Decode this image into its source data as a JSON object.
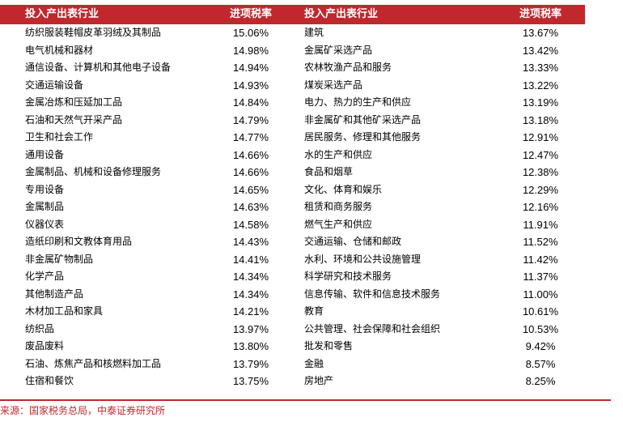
{
  "header": {
    "col1": "投入产出表行业",
    "col2": "进项税率",
    "col3": "投入产出表行业",
    "col4": "进项税率"
  },
  "rows": [
    {
      "a": "纺织服装鞋帽皮革羽绒及其制品",
      "ar": "15.06%",
      "b": "建筑",
      "br": "13.67%"
    },
    {
      "a": "电气机械和器材",
      "ar": "14.98%",
      "b": "金属矿采选产品",
      "br": "13.42%"
    },
    {
      "a": "通信设备、计算机和其他电子设备",
      "ar": "14.94%",
      "b": "农林牧渔产品和服务",
      "br": "13.33%"
    },
    {
      "a": "交通运输设备",
      "ar": "14.93%",
      "b": "煤炭采选产品",
      "br": "13.22%"
    },
    {
      "a": "金属冶炼和压延加工品",
      "ar": "14.84%",
      "b": "电力、热力的生产和供应",
      "br": "13.19%"
    },
    {
      "a": "石油和天然气开采产品",
      "ar": "14.79%",
      "b": "非金属矿和其他矿采选产品",
      "br": "13.18%"
    },
    {
      "a": "卫生和社会工作",
      "ar": "14.77%",
      "b": "居民服务、修理和其他服务",
      "br": "12.91%"
    },
    {
      "a": "通用设备",
      "ar": "14.66%",
      "b": "水的生产和供应",
      "br": "12.47%"
    },
    {
      "a": "金属制品、机械和设备修理服务",
      "ar": "14.66%",
      "b": "食品和烟草",
      "br": "12.38%"
    },
    {
      "a": "专用设备",
      "ar": "14.65%",
      "b": "文化、体育和娱乐",
      "br": "12.29%"
    },
    {
      "a": "金属制品",
      "ar": "14.63%",
      "b": "租赁和商务服务",
      "br": "12.16%"
    },
    {
      "a": "仪器仪表",
      "ar": "14.58%",
      "b": "燃气生产和供应",
      "br": "11.91%"
    },
    {
      "a": "造纸印刷和文教体育用品",
      "ar": "14.43%",
      "b": "交通运输、仓储和邮政",
      "br": "11.52%"
    },
    {
      "a": "非金属矿物制品",
      "ar": "14.41%",
      "b": "水利、环境和公共设施管理",
      "br": "11.42%"
    },
    {
      "a": "化学产品",
      "ar": "14.34%",
      "b": "科学研究和技术服务",
      "br": "11.37%"
    },
    {
      "a": "其他制造产品",
      "ar": "14.34%",
      "b": "信息传输、软件和信息技术服务",
      "br": "11.00%"
    },
    {
      "a": "木材加工品和家具",
      "ar": "14.21%",
      "b": "教育",
      "br": "10.61%"
    },
    {
      "a": "纺织品",
      "ar": "13.97%",
      "b": "公共管理、社会保障和社会组织",
      "br": "10.53%"
    },
    {
      "a": "废品废料",
      "ar": "13.80%",
      "b": "批发和零售",
      "br": "9.42%"
    },
    {
      "a": "石油、炼焦产品和核燃料加工品",
      "ar": "13.79%",
      "b": "金融",
      "br": "8.57%"
    },
    {
      "a": "住宿和餐饮",
      "ar": "13.75%",
      "b": "房地产",
      "br": "8.25%"
    }
  ],
  "source": "来源：国家税务总局，中泰证券研究所",
  "colors": {
    "accent": "#c0282d"
  }
}
